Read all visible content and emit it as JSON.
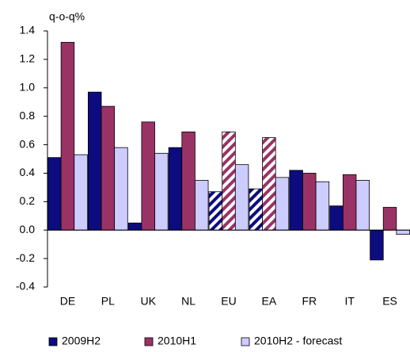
{
  "chart_data": {
    "type": "bar",
    "y_label": "q-o-q%",
    "categories": [
      "DE",
      "PL",
      "UK",
      "NL",
      "EU",
      "EA",
      "FR",
      "IT",
      "ES"
    ],
    "series": [
      {
        "name": "2009H2",
        "color": "#0c0c80",
        "values": [
          0.51,
          0.97,
          0.05,
          0.58,
          0.27,
          0.29,
          0.42,
          0.17,
          -0.21
        ]
      },
      {
        "name": "2010H1",
        "color": "#993366",
        "values": [
          1.32,
          0.87,
          0.76,
          0.69,
          0.69,
          0.65,
          0.4,
          0.39,
          0.16
        ]
      },
      {
        "name": "2010H2 - forecast",
        "color": "#ccccff",
        "values": [
          0.53,
          0.58,
          0.54,
          0.35,
          0.46,
          0.37,
          0.34,
          0.35,
          -0.03
        ]
      }
    ],
    "hatched_categories": [
      4,
      5
    ],
    "ylim": [
      -0.4,
      1.4
    ],
    "yticks": [
      -0.4,
      -0.2,
      {
        "value": 0,
        "label": "0.0"
      },
      0.2,
      0.4,
      0.6,
      0.8,
      {
        "value": 1,
        "label": "1.0"
      },
      1.2,
      1.4
    ],
    "legend": "bottom"
  }
}
